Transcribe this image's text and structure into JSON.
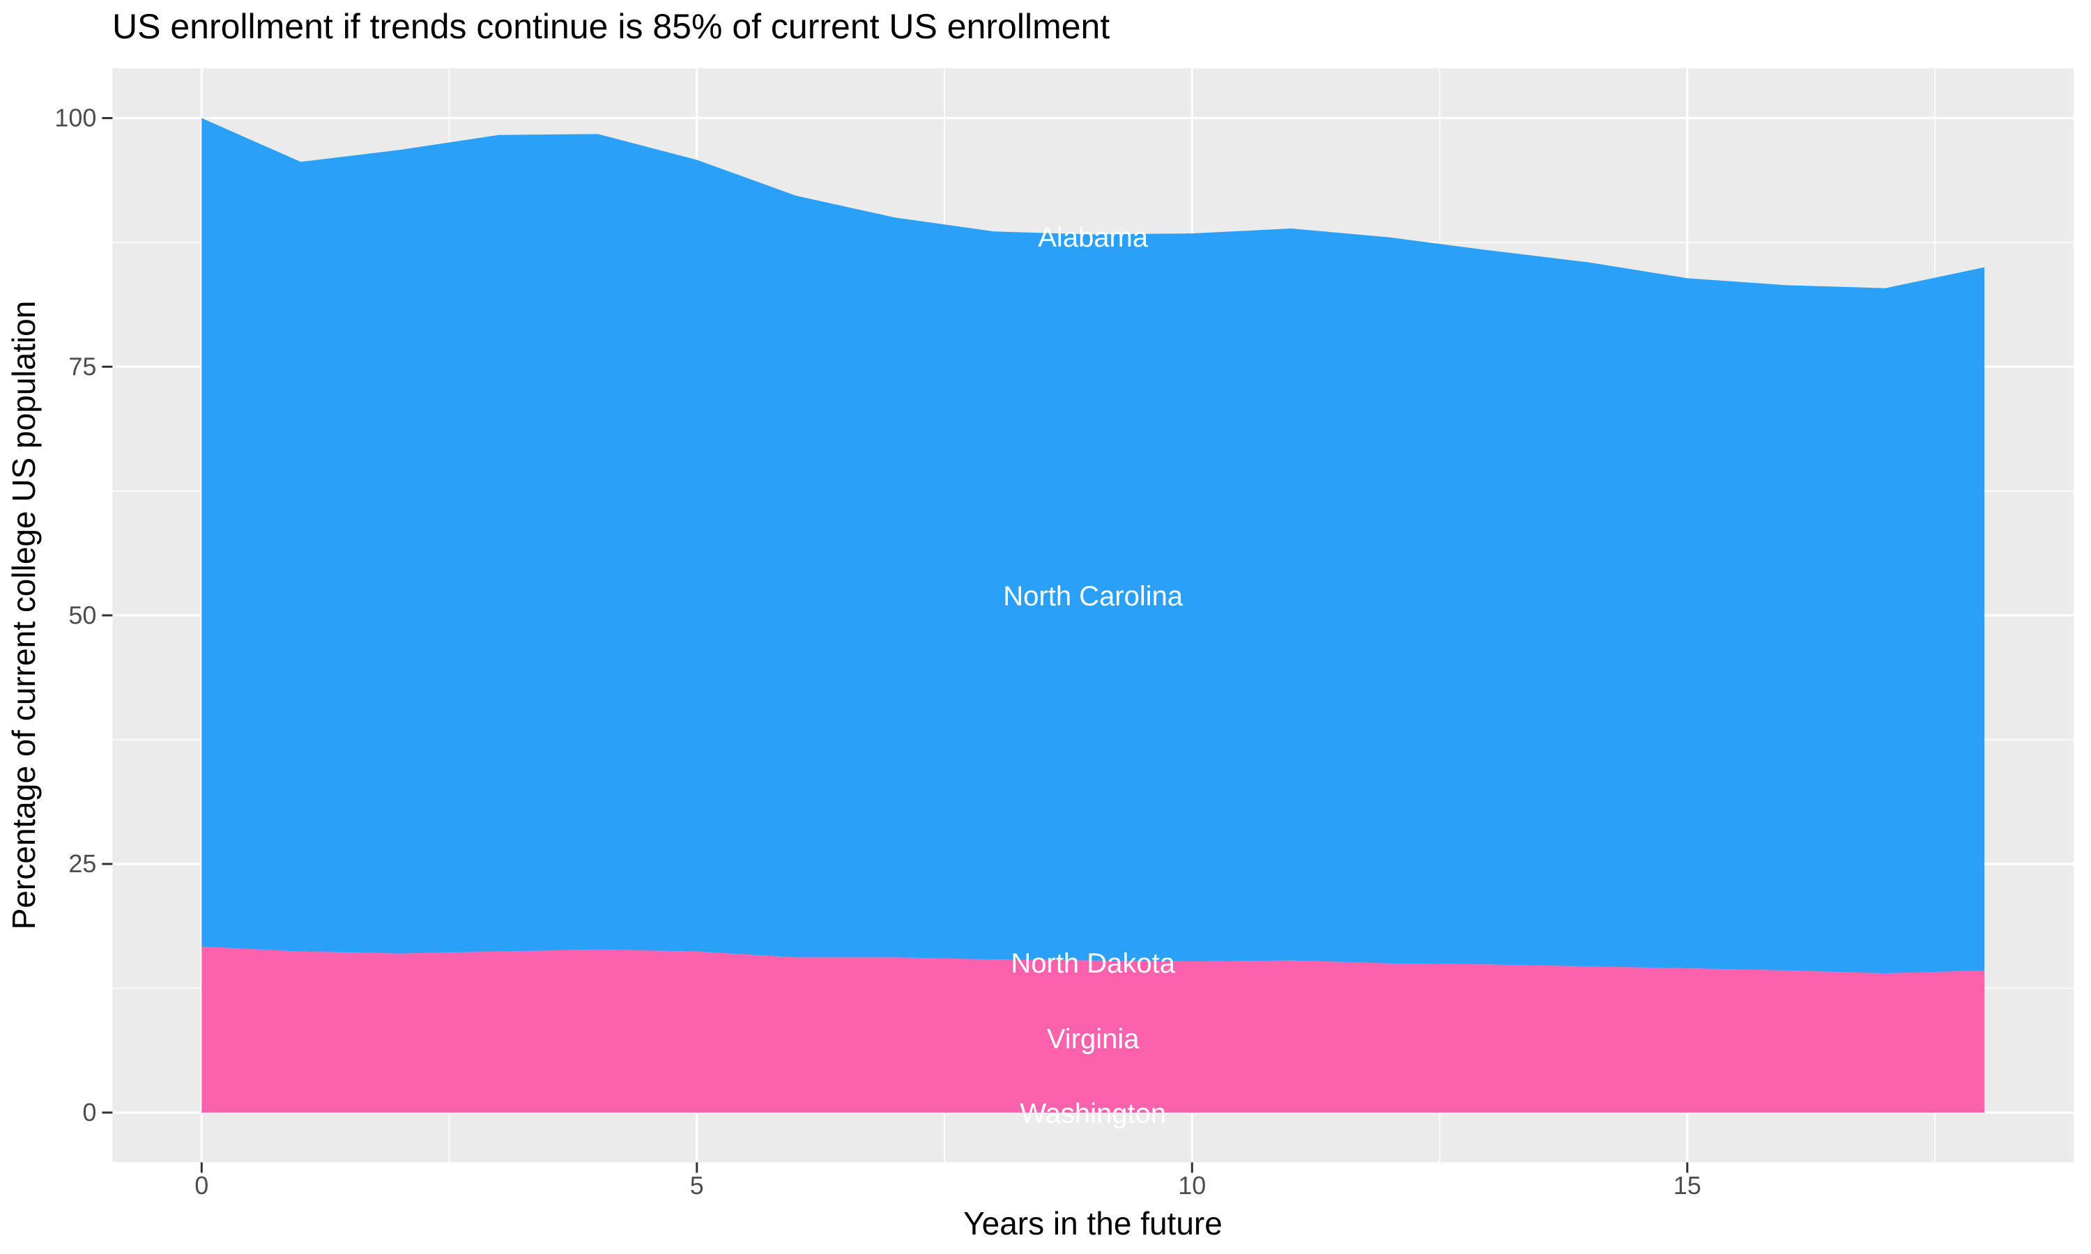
{
  "chart_data": {
    "type": "area",
    "stacked": true,
    "title": "US enrollment if trends continue is 85% of current US enrollment",
    "xlabel": "Years in the future",
    "ylabel": "Percentage of current college US population",
    "x": [
      0,
      1,
      2,
      3,
      4,
      5,
      6,
      7,
      8,
      9,
      10,
      11,
      12,
      13,
      14,
      15,
      16,
      17,
      18
    ],
    "x_ticks": [
      0,
      5,
      10,
      15
    ],
    "y_ticks": [
      0,
      25,
      50,
      75,
      100
    ],
    "x_minor_gridlines": [
      2.5,
      7.5,
      12.5,
      17.5
    ],
    "y_minor_gridlines": [
      12.5,
      37.5,
      62.5,
      87.5
    ],
    "xlim": [
      -0.9,
      18.9
    ],
    "ylim": [
      -5,
      105
    ],
    "grid": true,
    "legend": false,
    "states_stack_order_bottom_to_top": [
      "Washington",
      "Virginia",
      "North Dakota",
      "North Carolina",
      "Alabama"
    ],
    "series": [
      {
        "name": "pink-region-top (cumulative Washington+Virginia+North Dakota)",
        "color": "#FC61AE",
        "values": [
          16.7,
          16.2,
          16.0,
          16.2,
          16.4,
          16.2,
          15.6,
          15.6,
          15.4,
          15.3,
          15.2,
          15.3,
          15.0,
          14.9,
          14.7,
          14.5,
          14.3,
          14.0,
          14.3
        ]
      },
      {
        "name": "blue-region-top (cumulative total incl. North Carolina+Alabama)",
        "color": "#2AA0F8",
        "values": [
          100,
          95.6,
          96.8,
          98.3,
          98.4,
          95.8,
          92.2,
          90.0,
          88.6,
          88.3,
          88.4,
          88.9,
          88.0,
          86.7,
          85.5,
          83.9,
          83.2,
          82.9,
          85.0
        ]
      }
    ],
    "area_labels": [
      {
        "text": "Alabama",
        "x": 9,
        "y": 88.0,
        "color": "#FFFFFF"
      },
      {
        "text": "North Carolina",
        "x": 9,
        "y": 51.9,
        "color": "#FFFFFF"
      },
      {
        "text": "North Dakota",
        "x": 9,
        "y": 15.0,
        "color": "#FFFFFF"
      },
      {
        "text": "Virginia",
        "x": 9,
        "y": 7.4,
        "color": "#FFFFFF"
      },
      {
        "text": "Washington",
        "x": 9,
        "y": -0.1,
        "color": "#FFFFFF"
      }
    ],
    "colors": {
      "panel_background": "#EBEBEB",
      "gridline": "#FFFFFF",
      "tick_text": "#4D4D4D",
      "tick_mark": "#333333",
      "title_text": "#000000"
    }
  }
}
